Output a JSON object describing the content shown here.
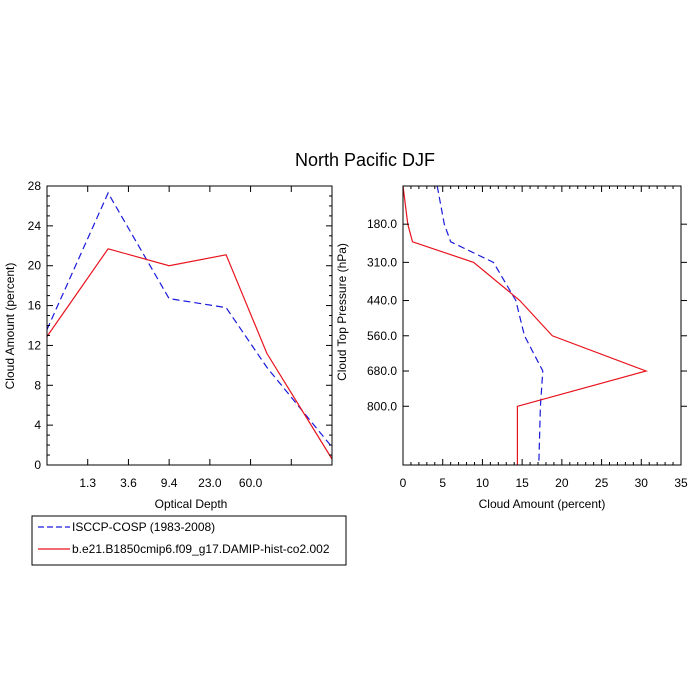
{
  "title": "North Pacific DJF",
  "colors": {
    "obs": "#1a1adb",
    "model": "#e8141e",
    "axis": "#000000"
  },
  "legend": {
    "entries": [
      {
        "label": "ISCCP-COSP (1983-2008)",
        "style": "dashed",
        "color": "#1a1adb"
      },
      {
        "label": "b.e21.B1850cmip6.f09_g17.DAMIP-hist-co2.002",
        "style": "solid",
        "color": "#e8141e"
      }
    ]
  },
  "chart_data": [
    {
      "type": "line",
      "xlabel": "Optical Depth",
      "ylabel": "Cloud Amount (percent)",
      "ylim": [
        0,
        28
      ],
      "yticks": [
        "0",
        "4",
        "8",
        "12",
        "16",
        "20",
        "24",
        "28"
      ],
      "xtick_labels": [
        "1.3",
        "3.6",
        "9.4",
        "23.0",
        "60.0"
      ],
      "x_bins": 7,
      "series": [
        {
          "name": "ISCCP-COSP (1983-2008)",
          "style": "dashed",
          "values": [
            13.6,
            27.3,
            16.7,
            15.8,
            9.8,
            1.8
          ]
        },
        {
          "name": "b.e21.B1850cmip6.f09_g17.DAMIP-hist-co2.002",
          "style": "solid",
          "values": [
            12.9,
            21.7,
            20.0,
            21.1,
            11.2,
            0.6
          ]
        }
      ]
    },
    {
      "type": "line",
      "xlabel": "Cloud Amount (percent)",
      "ylabel": "Cloud Top Pressure (hPa)",
      "xlim": [
        0,
        35
      ],
      "xticks": [
        "0",
        "5",
        "10",
        "15",
        "20",
        "25",
        "30",
        "35"
      ],
      "ylim_hpa": [
        50,
        1000
      ],
      "ytick_values": [
        180,
        310,
        440,
        560,
        680,
        800
      ],
      "ytick_labels": [
        "180.0",
        "310.0",
        "440.0",
        "560.0",
        "680.0",
        "800.0"
      ],
      "series": [
        {
          "name": "ISCCP-COSP (1983-2008)",
          "style": "dashed",
          "pressure": [
            50,
            180,
            240,
            310,
            440,
            560,
            680,
            800,
            1000
          ],
          "values": [
            4.3,
            5.2,
            6.0,
            11.4,
            14.2,
            15.3,
            17.6,
            17.3,
            17.1
          ]
        },
        {
          "name": "b.e21.B1850cmip6.f09_g17.DAMIP-hist-co2.002",
          "style": "solid",
          "pressure": [
            50,
            180,
            240,
            310,
            440,
            560,
            680,
            800,
            1000
          ],
          "values": [
            0.0,
            0.6,
            1.2,
            8.9,
            14.7,
            18.8,
            30.6,
            14.4,
            14.4
          ]
        }
      ]
    }
  ]
}
